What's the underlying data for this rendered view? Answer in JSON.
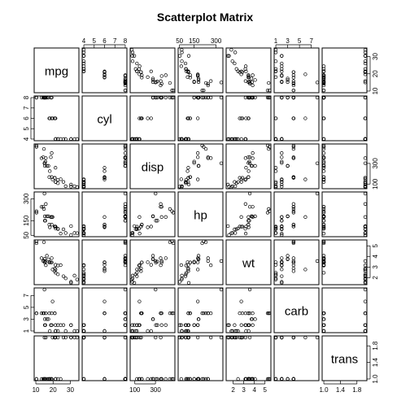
{
  "title": "Scatterplot Matrix",
  "chart_data": {
    "type": "scatter",
    "title": "Scatterplot Matrix",
    "variables": [
      {
        "name": "mpg",
        "range": [
          10,
          34
        ],
        "ticks": [
          10,
          20,
          30
        ],
        "tick_labels": [
          "10",
          "20",
          "30"
        ]
      },
      {
        "name": "cyl",
        "range": [
          4,
          8
        ],
        "ticks": [
          4,
          5,
          6,
          7,
          8
        ],
        "tick_labels": [
          "4",
          "5",
          "6",
          "7",
          "8"
        ]
      },
      {
        "name": "disp",
        "range": [
          71,
          472
        ],
        "ticks": [
          100,
          300
        ],
        "tick_labels": [
          "100",
          "300"
        ]
      },
      {
        "name": "hp",
        "range": [
          52,
          335
        ],
        "ticks": [
          50,
          150,
          300
        ],
        "tick_labels": [
          "50",
          "150",
          "300"
        ]
      },
      {
        "name": "wt",
        "range": [
          1.5,
          5.4
        ],
        "ticks": [
          2,
          3,
          4,
          5
        ],
        "tick_labels": [
          "2",
          "3",
          "4",
          "5"
        ]
      },
      {
        "name": "carb",
        "range": [
          1,
          8
        ],
        "ticks": [
          1,
          3,
          5,
          7
        ],
        "tick_labels": [
          "1",
          "3",
          "5",
          "7"
        ]
      },
      {
        "name": "trans",
        "range": [
          1,
          2
        ],
        "ticks": [
          1.0,
          1.4,
          1.8
        ],
        "tick_labels": [
          "1.0",
          "1.4",
          "1.8"
        ]
      }
    ],
    "axis_placement": {
      "top": [
        1,
        3,
        5
      ],
      "bottom": [
        0,
        2,
        4,
        6
      ],
      "right": [
        0,
        2,
        4,
        6
      ],
      "left": [
        1,
        3,
        5
      ]
    },
    "observations": [
      [
        21.0,
        6,
        160,
        110,
        2.62,
        4,
        2
      ],
      [
        21.0,
        6,
        160,
        110,
        2.875,
        4,
        2
      ],
      [
        22.8,
        4,
        108,
        93,
        2.32,
        1,
        2
      ],
      [
        21.4,
        6,
        258,
        110,
        3.215,
        1,
        1
      ],
      [
        18.7,
        8,
        360,
        175,
        3.44,
        2,
        1
      ],
      [
        18.1,
        6,
        225,
        105,
        3.46,
        1,
        1
      ],
      [
        14.3,
        8,
        360,
        245,
        3.57,
        4,
        1
      ],
      [
        24.4,
        4,
        146.7,
        62,
        3.19,
        2,
        1
      ],
      [
        22.8,
        4,
        140.8,
        95,
        3.15,
        2,
        1
      ],
      [
        19.2,
        6,
        167.6,
        123,
        3.44,
        4,
        1
      ],
      [
        17.8,
        6,
        167.6,
        123,
        3.44,
        4,
        1
      ],
      [
        16.4,
        8,
        275.8,
        180,
        4.07,
        3,
        1
      ],
      [
        17.3,
        8,
        275.8,
        180,
        3.73,
        3,
        1
      ],
      [
        15.2,
        8,
        275.8,
        180,
        3.78,
        3,
        1
      ],
      [
        10.4,
        8,
        472,
        205,
        5.25,
        4,
        1
      ],
      [
        10.4,
        8,
        460,
        215,
        5.424,
        4,
        1
      ],
      [
        14.7,
        8,
        440,
        230,
        5.345,
        4,
        1
      ],
      [
        32.4,
        4,
        78.7,
        66,
        2.2,
        1,
        2
      ],
      [
        30.4,
        4,
        75.7,
        52,
        1.615,
        2,
        2
      ],
      [
        33.9,
        4,
        71.1,
        65,
        1.835,
        1,
        2
      ],
      [
        21.5,
        4,
        120.1,
        97,
        2.465,
        1,
        1
      ],
      [
        15.5,
        8,
        318,
        150,
        3.52,
        2,
        1
      ],
      [
        15.2,
        8,
        304,
        150,
        3.435,
        2,
        1
      ],
      [
        13.3,
        8,
        350,
        245,
        3.84,
        4,
        1
      ],
      [
        19.2,
        8,
        400,
        175,
        3.845,
        2,
        1
      ],
      [
        27.3,
        4,
        79,
        66,
        1.935,
        1,
        2
      ],
      [
        26.0,
        4,
        120.3,
        91,
        2.14,
        2,
        2
      ],
      [
        30.4,
        4,
        95.1,
        113,
        1.513,
        2,
        2
      ],
      [
        15.8,
        8,
        351,
        264,
        3.17,
        4,
        2
      ],
      [
        19.7,
        6,
        145,
        175,
        2.77,
        6,
        2
      ],
      [
        15.0,
        8,
        301,
        335,
        3.57,
        8,
        2
      ],
      [
        21.4,
        4,
        121,
        109,
        2.78,
        2,
        2
      ]
    ],
    "grid": false,
    "legend": "none",
    "marker": "open-circle"
  }
}
